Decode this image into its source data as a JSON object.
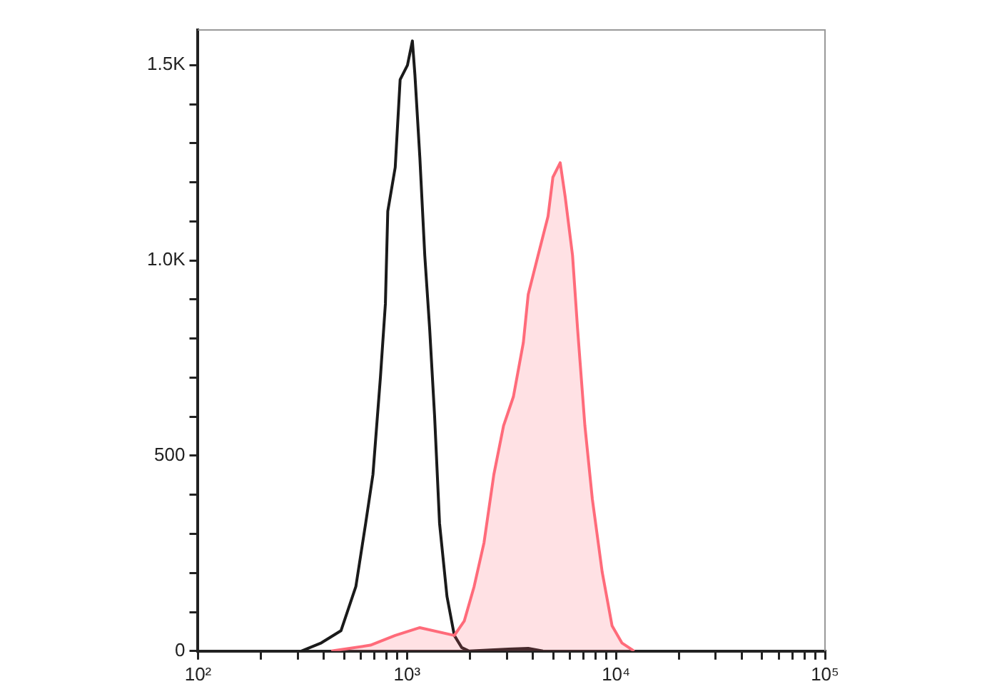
{
  "chart_data": {
    "type": "area",
    "log": "x",
    "grid": false,
    "xlim": [
      100,
      100000
    ],
    "xticks": [
      {
        "value": 100,
        "label": "10²"
      },
      {
        "value": 200,
        "label": null
      },
      {
        "value": 300,
        "label": null
      },
      {
        "value": 400,
        "label": null
      },
      {
        "value": 500,
        "label": null
      },
      {
        "value": 600,
        "label": null
      },
      {
        "value": 700,
        "label": null
      },
      {
        "value": 800,
        "label": null
      },
      {
        "value": 900,
        "label": null
      },
      {
        "value": 1000,
        "label": "10³"
      },
      {
        "value": 2000,
        "label": null
      },
      {
        "value": 3000,
        "label": null
      },
      {
        "value": 4000,
        "label": null
      },
      {
        "value": 5000,
        "label": null
      },
      {
        "value": 6000,
        "label": null
      },
      {
        "value": 7000,
        "label": null
      },
      {
        "value": 8000,
        "label": null
      },
      {
        "value": 9000,
        "label": null
      },
      {
        "value": 10000,
        "label": "10⁴"
      },
      {
        "value": 20000,
        "label": null
      },
      {
        "value": 30000,
        "label": null
      },
      {
        "value": 40000,
        "label": null
      },
      {
        "value": 50000,
        "label": null
      },
      {
        "value": 60000,
        "label": null
      },
      {
        "value": 70000,
        "label": null
      },
      {
        "value": 80000,
        "label": null
      },
      {
        "value": 90000,
        "label": null
      },
      {
        "value": 100000,
        "label": "10⁵"
      }
    ],
    "ylim": [
      0,
      1590
    ],
    "yticks": [
      0,
      {
        "value": 100,
        "label": null
      },
      {
        "value": 200,
        "label": null
      },
      {
        "value": 300,
        "label": null
      },
      {
        "value": 400,
        "label": null
      },
      500,
      {
        "value": 600,
        "label": null
      },
      {
        "value": 700,
        "label": null
      },
      {
        "value": 800,
        "label": null
      },
      {
        "value": 900,
        "label": null
      },
      {
        "value": 1000,
        "label": "1.0K"
      },
      {
        "value": 1100,
        "label": null
      },
      {
        "value": 1200,
        "label": null
      },
      {
        "value": 1300,
        "label": null
      },
      {
        "value": 1400,
        "label": null
      },
      {
        "value": 1500,
        "label": "1.5K"
      }
    ],
    "series": [
      {
        "type": "line",
        "color": "#1a1a1a",
        "x": [
          312,
          389,
          483,
          569,
          634,
          687,
          746,
          788,
          809,
          878,
          927,
          1005,
          1061,
          1091,
          1152,
          1216,
          1283,
          1355,
          1431,
          1553,
          1684,
          1827,
          1982,
          3061,
          3802,
          4467
        ],
        "values": [
          0,
          21,
          52,
          165,
          327,
          452,
          701,
          889,
          1126,
          1238,
          1463,
          1500,
          1562,
          1475,
          1263,
          1013,
          826,
          602,
          327,
          140,
          40,
          9,
          0,
          5,
          7,
          0
        ]
      },
      {
        "type": "area",
        "color": "#ff6b7a",
        "x": [
          434,
          668,
          878,
          1152,
          1684,
          1879,
          2094,
          2335,
          2603,
          2897,
          3228,
          3601,
          3802,
          4238,
          4729,
          4989,
          5408,
          5712,
          6194,
          6546,
          7097,
          7705,
          8590,
          9572,
          10666,
          12218
        ],
        "values": [
          0,
          15,
          40,
          60,
          40,
          77,
          165,
          277,
          452,
          577,
          651,
          789,
          913,
          1013,
          1113,
          1213,
          1250,
          1163,
          1013,
          826,
          577,
          389,
          202,
          65,
          21,
          0
        ]
      }
    ]
  }
}
